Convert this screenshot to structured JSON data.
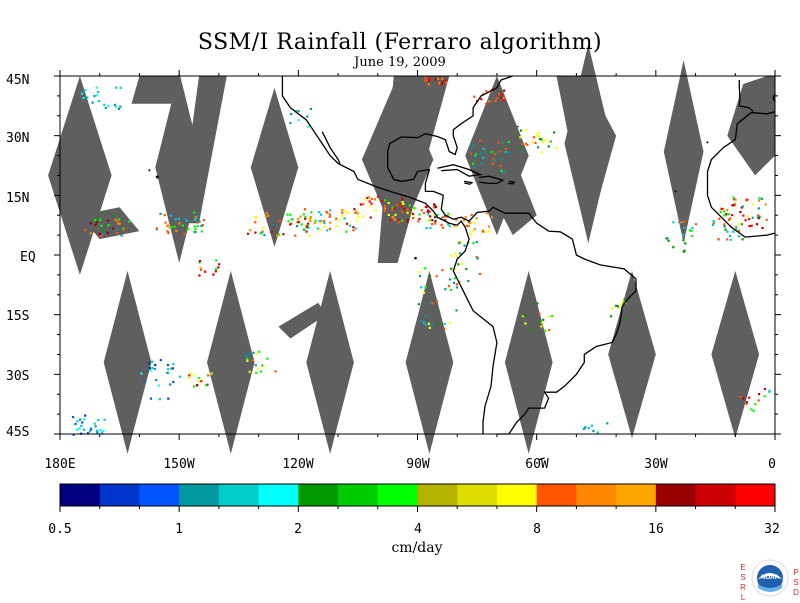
{
  "title": "SSM/I Rainfall (Ferraro algorithm)",
  "date": "June 19, 2009",
  "map": {
    "lat_labels": [
      "45N",
      "30N",
      "15N",
      "EQ",
      "15S",
      "30S",
      "45S"
    ],
    "lon_labels": [
      "180E",
      "150W",
      "120W",
      "90W",
      "60W",
      "30W",
      "0"
    ],
    "lat_range": [
      -45,
      45
    ],
    "lon_range": [
      -180,
      0
    ],
    "ocean_color": "#ffffff",
    "land_outline_color": "#000000",
    "no_data_color": "#5f5f5f"
  },
  "colorbar": {
    "colors": [
      "#000080",
      "#0033cc",
      "#0055ff",
      "#00999f",
      "#00cccc",
      "#00ffff",
      "#009900",
      "#00cc00",
      "#00ff00",
      "#b4b400",
      "#dddd00",
      "#ffff00",
      "#ff5500",
      "#ff8800",
      "#ffa500",
      "#990000",
      "#cc0000",
      "#ff0000"
    ],
    "tick_labels": [
      "0.5",
      "1",
      "2",
      "4",
      "8",
      "16",
      "32"
    ],
    "units": "cm/day"
  },
  "logo": {
    "left_text": [
      "E",
      "S",
      "R",
      "L"
    ],
    "right_text": [
      "P",
      "S",
      "D"
    ],
    "name": "NOAA"
  }
}
